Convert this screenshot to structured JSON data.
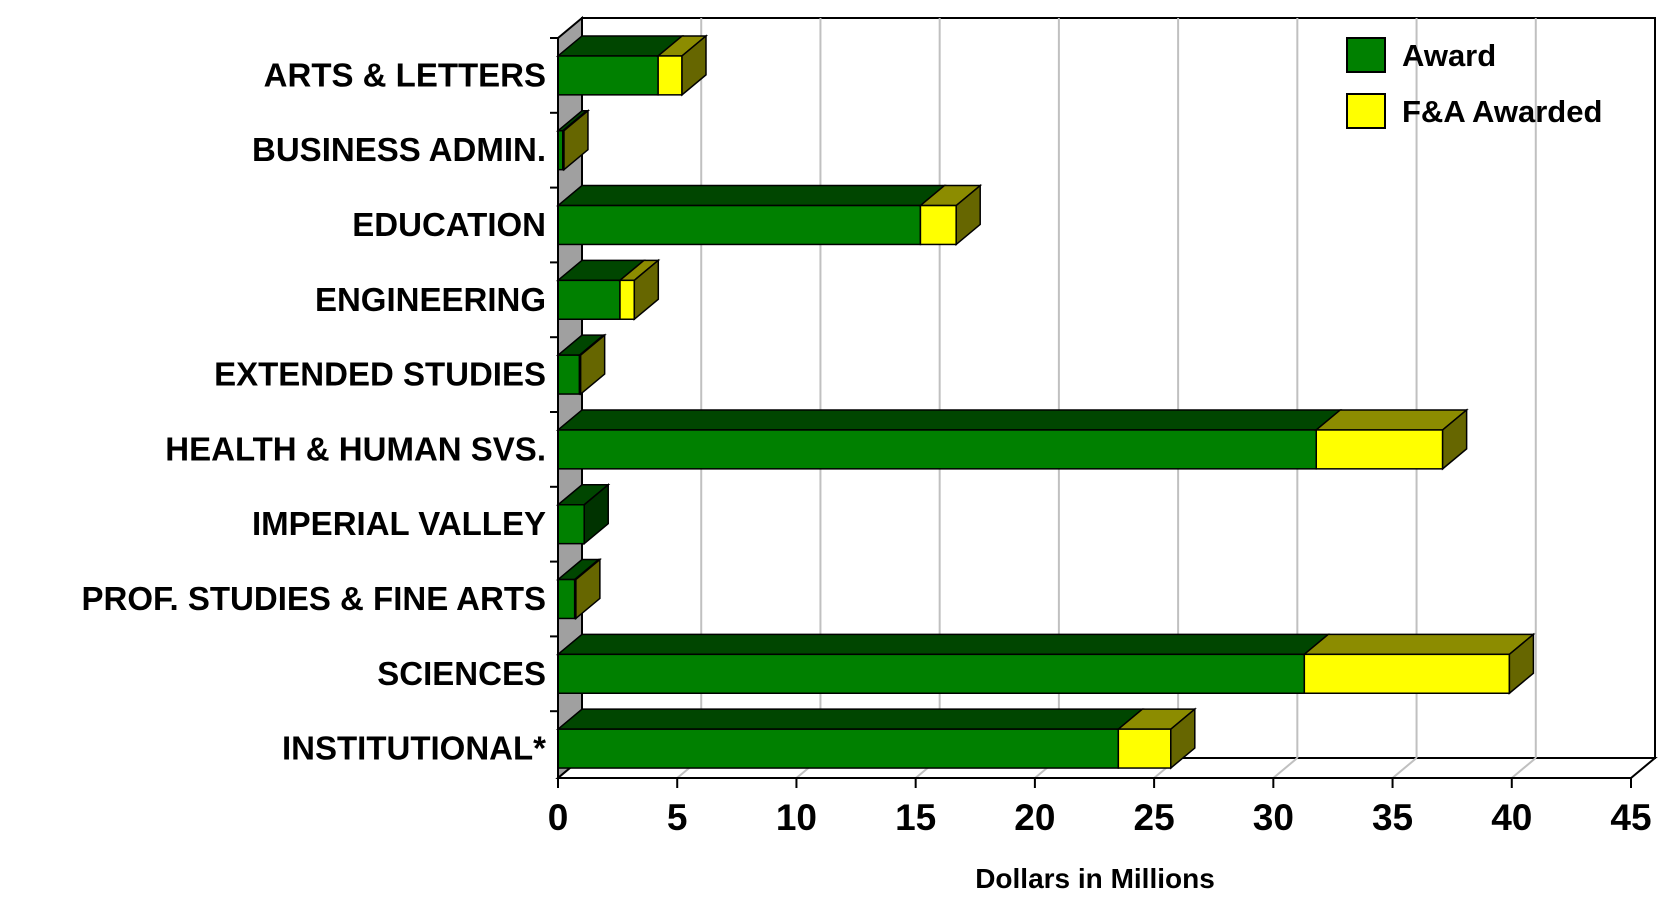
{
  "chart_data": {
    "type": "bar",
    "orientation": "horizontal",
    "stacked": true,
    "three_d": true,
    "categories": [
      "ARTS & LETTERS",
      "BUSINESS ADMIN.",
      "EDUCATION",
      "ENGINEERING",
      "EXTENDED STUDIES",
      "HEALTH & HUMAN SVS.",
      "IMPERIAL VALLEY",
      "PROF. STUDIES & FINE ARTS",
      "SCIENCES",
      "INSTITUTIONAL*"
    ],
    "series": [
      {
        "name": "Award",
        "color": "#008000",
        "values": [
          4.2,
          0.2,
          15.2,
          2.6,
          0.9,
          31.8,
          1.1,
          0.7,
          31.3,
          23.5
        ]
      },
      {
        "name": "F&A Awarded",
        "color": "#ffff00",
        "values": [
          1.0,
          0.05,
          1.5,
          0.6,
          0.05,
          5.3,
          0.0,
          0.05,
          8.6,
          2.2
        ]
      }
    ],
    "xlabel": "Dollars in Millions",
    "ylabel": "",
    "xlim": [
      0,
      45
    ],
    "xticks": [
      "0",
      "5",
      "10",
      "15",
      "20",
      "25",
      "30",
      "35",
      "40",
      "45"
    ],
    "grid": true,
    "legend_position": "top-right"
  }
}
